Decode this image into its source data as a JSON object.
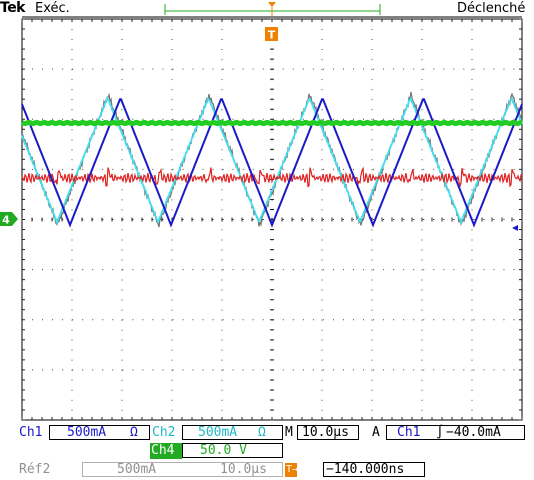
{
  "header": {
    "brand": "Tek",
    "acquisition_state": "Exéc.",
    "trigger_status": "Déclenché",
    "trigger_marker": "T"
  },
  "ground_marker": "4",
  "colors": {
    "ch1": "#1a1ac8",
    "ch2": "#40e0f0",
    "ch3": "#e02020",
    "ch4": "#22cc22",
    "ref": "#777777",
    "trigger": "#f08000",
    "grid": "#000000"
  },
  "readouts": {
    "ch1_label": "Ch1",
    "ch1_scale": "500mA",
    "ch1_unit": "Ω",
    "ch2_label": "Ch2",
    "ch2_scale": "500mA",
    "ch2_unit": "Ω",
    "timebase_label": "M",
    "timebase": "10.0µs",
    "trigger_mode": "A",
    "trigger_source": "Ch1",
    "trigger_slope": "∫",
    "trigger_level": "−40.0mA",
    "ch4_label": "Ch4",
    "ch4_scale": "50.0 V",
    "ref_label": "Réf2",
    "ref_scale": "500mA",
    "ref_time": "10.0µs",
    "position_icon": "T→▾",
    "trigger_position": "−140.000ns"
  },
  "icons": {
    "trigger_marker": "trigger-marker-icon",
    "ground": "channel-4-ground-icon",
    "ch1_level": "ch1-level-arrow-icon",
    "slope": "rising-edge-icon"
  }
}
